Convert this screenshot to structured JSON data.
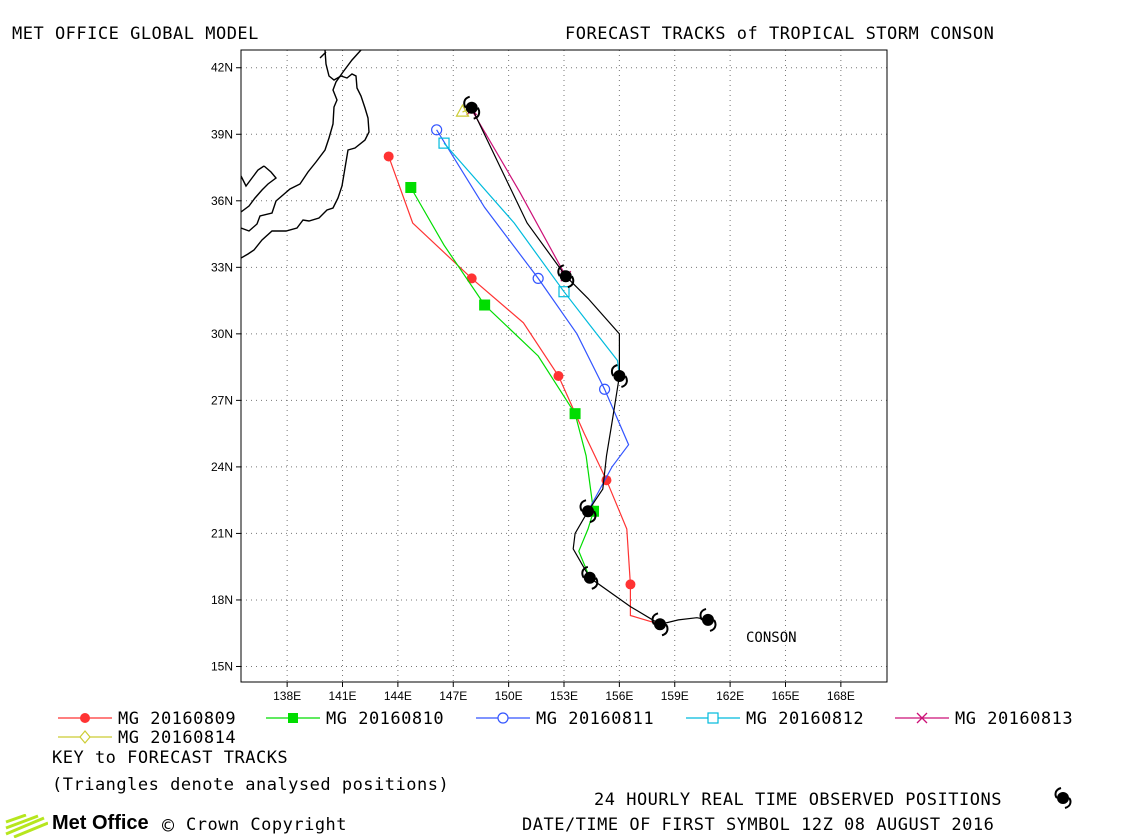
{
  "header": {
    "left_title": "MET OFFICE GLOBAL MODEL",
    "right_title": "FORECAST TRACKS of TROPICAL STORM CONSON"
  },
  "map": {
    "lat_labels": [
      "42N",
      "39N",
      "36N",
      "33N",
      "30N",
      "27N",
      "24N",
      "21N",
      "18N",
      "15N"
    ],
    "lon_labels": [
      "138E",
      "141E",
      "144E",
      "147E",
      "150E",
      "153E",
      "156E",
      "159E",
      "162E",
      "165E",
      "168E"
    ],
    "storm_label": "CONSON",
    "land_color": "#000000",
    "grid": "dotted"
  },
  "chart_data": {
    "type": "line",
    "x_axis": "longitude (deg E)",
    "y_axis": "latitude (deg N)",
    "xlim": [
      135.5,
      170.5
    ],
    "ylim": [
      14.3,
      42.8
    ],
    "observed": {
      "points": [
        [
          160.8,
          17.1
        ],
        [
          158.2,
          16.9
        ],
        [
          154.4,
          19.0
        ],
        [
          154.3,
          22.0
        ],
        [
          156.0,
          28.1
        ],
        [
          153.1,
          32.6
        ],
        [
          148.0,
          40.2
        ]
      ],
      "path": [
        [
          160.8,
          17.1
        ],
        [
          160.2,
          17.2
        ],
        [
          159.2,
          17.1
        ],
        [
          158.2,
          16.9
        ],
        [
          156.6,
          17.7
        ],
        [
          154.4,
          19.0
        ],
        [
          153.5,
          20.3
        ],
        [
          153.6,
          21.0
        ],
        [
          154.3,
          22.0
        ],
        [
          155.1,
          23.0
        ],
        [
          155.3,
          24.5
        ],
        [
          155.6,
          26.0
        ],
        [
          156.0,
          28.1
        ],
        [
          156.0,
          30.0
        ],
        [
          154.3,
          31.6
        ],
        [
          153.1,
          32.6
        ],
        [
          151.0,
          35.0
        ],
        [
          148.0,
          40.2
        ]
      ]
    },
    "series": [
      {
        "name": "MG 20160809",
        "color": "#ff3333",
        "marker": "filled-circle",
        "path": [
          [
            158.2,
            16.9
          ],
          [
            156.6,
            17.3
          ],
          [
            156.6,
            18.7
          ],
          [
            156.4,
            21.2
          ],
          [
            155.3,
            23.4
          ],
          [
            154.1,
            25.5
          ],
          [
            152.7,
            28.1
          ],
          [
            150.8,
            30.5
          ],
          [
            148.0,
            32.5
          ],
          [
            144.8,
            35.0
          ],
          [
            143.5,
            38.0
          ]
        ],
        "markers": [
          [
            158.2,
            16.9
          ],
          [
            156.6,
            18.7
          ],
          [
            155.3,
            23.4
          ],
          [
            152.7,
            28.1
          ],
          [
            148.0,
            32.5
          ],
          [
            143.5,
            38.0
          ]
        ]
      },
      {
        "name": "MG 20160810",
        "color": "#00dd00",
        "marker": "filled-square",
        "path": [
          [
            154.4,
            19.0
          ],
          [
            153.8,
            20.2
          ],
          [
            154.3,
            21.2
          ],
          [
            154.6,
            22.0
          ],
          [
            154.2,
            24.5
          ],
          [
            153.6,
            26.4
          ],
          [
            151.6,
            29.0
          ],
          [
            148.7,
            31.3
          ],
          [
            146.5,
            34.0
          ],
          [
            144.7,
            36.6
          ]
        ],
        "markers": [
          [
            154.6,
            22.0
          ],
          [
            153.6,
            26.4
          ],
          [
            148.7,
            31.3
          ],
          [
            144.7,
            36.6
          ]
        ]
      },
      {
        "name": "MG 20160811",
        "color": "#3355ff",
        "marker": "open-circle",
        "path": [
          [
            154.3,
            22.0
          ],
          [
            155.6,
            24.0
          ],
          [
            156.5,
            25.0
          ],
          [
            155.2,
            27.5
          ],
          [
            153.7,
            30.0
          ],
          [
            151.6,
            32.5
          ],
          [
            148.7,
            35.7
          ],
          [
            146.1,
            39.2
          ]
        ],
        "markers": [
          [
            155.2,
            27.5
          ],
          [
            151.6,
            32.5
          ],
          [
            146.1,
            39.2
          ]
        ]
      },
      {
        "name": "MG 20160812",
        "color": "#00bbdd",
        "marker": "open-square",
        "path": [
          [
            156.0,
            28.1
          ],
          [
            155.9,
            28.8
          ],
          [
            154.4,
            30.4
          ],
          [
            153.0,
            31.9
          ],
          [
            150.3,
            35.0
          ],
          [
            146.5,
            38.6
          ]
        ],
        "markers": [
          [
            153.0,
            31.9
          ],
          [
            146.5,
            38.6
          ]
        ]
      },
      {
        "name": "MG 20160813",
        "color": "#cc1177",
        "marker": "x",
        "path": [
          [
            153.1,
            32.6
          ],
          [
            150.6,
            36.4
          ],
          [
            148.0,
            40.1
          ]
        ],
        "markers": [
          [
            153.1,
            32.6
          ],
          [
            148.0,
            40.1
          ]
        ]
      },
      {
        "name": "MG 20160814",
        "color": "#cccc33",
        "marker": "open-diamond",
        "path": [
          [
            148.0,
            40.2
          ],
          [
            147.5,
            40.0
          ]
        ],
        "markers": [
          [
            147.5,
            40.0
          ]
        ]
      }
    ]
  },
  "footer": {
    "key_title": "KEY to FORECAST TRACKS",
    "key_note": "(Triangles denote analysed positions)",
    "observed_note": "24 HOURLY REAL TIME OBSERVED POSITIONS",
    "datetime_note": "DATE/TIME OF FIRST SYMBOL 12Z 08 AUGUST 2016",
    "logo_text": "Met Office",
    "copyright": "Crown Copyright"
  }
}
